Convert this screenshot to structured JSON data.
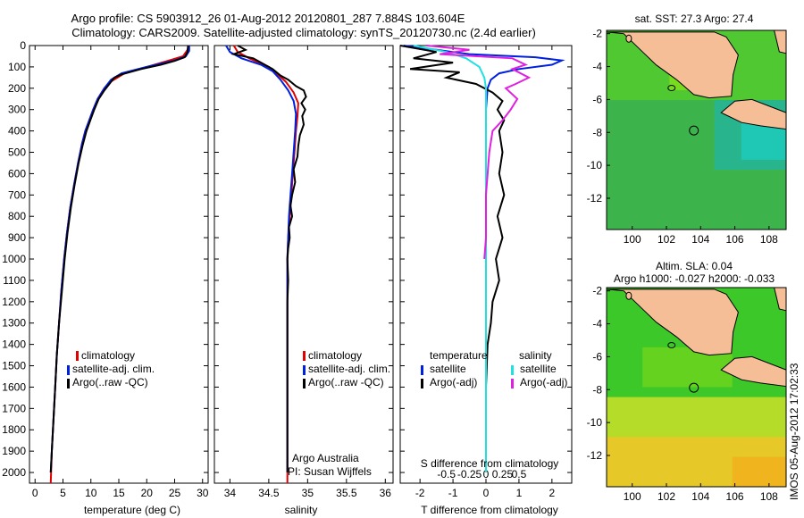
{
  "header": {
    "line1": "Argo profile: CS 5903912_26 01-Aug-2012 20120801_287 7.884S 103.604E",
    "line2": "Climatology: CARS2009. Satellite-adjusted climatology: synTS_20120730.nc (2.4d earlier)"
  },
  "colors": {
    "climatology": "#e00000",
    "satellite": "#0020e0",
    "argo": "#000000",
    "satellite_diff": "#20e0e0",
    "argo_diff": "#e020e0",
    "land": "#f5be96"
  },
  "chart_data": [
    {
      "type": "line",
      "id": "temperature",
      "xlabel": "temperature (deg C)",
      "ylabel": "",
      "xlim": [
        -1,
        31
      ],
      "ylim": [
        2050,
        0
      ],
      "xticks": [
        0,
        5,
        10,
        15,
        20,
        25,
        30
      ],
      "yticks": [
        0,
        100,
        200,
        300,
        400,
        500,
        600,
        700,
        800,
        900,
        1000,
        1100,
        1200,
        1300,
        1400,
        1500,
        1600,
        1700,
        1800,
        1900,
        2000
      ],
      "legend": [
        "climatology",
        "satellite-adj. clim.",
        "Argo(..raw -QC)"
      ],
      "series": [
        {
          "name": "climatology",
          "color": "#e00000",
          "points": [
            [
              27.5,
              0
            ],
            [
              27.3,
              20
            ],
            [
              26.5,
              50
            ],
            [
              24,
              70
            ],
            [
              20,
              100
            ],
            [
              16,
              130
            ],
            [
              13.5,
              170
            ],
            [
              12.4,
              200
            ],
            [
              11.2,
              250
            ],
            [
              10.4,
              300
            ],
            [
              9.7,
              350
            ],
            [
              9,
              400
            ],
            [
              8.4,
              460
            ],
            [
              7.7,
              550
            ],
            [
              7,
              650
            ],
            [
              6.3,
              760
            ],
            [
              5.7,
              880
            ],
            [
              5.2,
              1000
            ],
            [
              4.7,
              1150
            ],
            [
              4.3,
              1300
            ],
            [
              3.9,
              1450
            ],
            [
              3.6,
              1600
            ],
            [
              3.3,
              1750
            ],
            [
              3,
              1900
            ],
            [
              2.8,
              2050
            ]
          ]
        },
        {
          "name": "satellite-adj. clim.",
          "color": "#0020e0",
          "points": [
            [
              27.6,
              0
            ],
            [
              27.6,
              25
            ],
            [
              27,
              50
            ],
            [
              25,
              70
            ],
            [
              20,
              100
            ],
            [
              15.5,
              130
            ],
            [
              13.6,
              160
            ],
            [
              12.4,
              200
            ],
            [
              11.2,
              250
            ],
            [
              10.4,
              300
            ],
            [
              9.7,
              350
            ],
            [
              9,
              400
            ],
            [
              8.4,
              460
            ],
            [
              7.7,
              550
            ],
            [
              7,
              650
            ],
            [
              6.3,
              760
            ],
            [
              5.7,
              880
            ],
            [
              5.2,
              1000
            ],
            [
              4.7,
              1150
            ],
            [
              4.3,
              1300
            ],
            [
              3.9,
              1450
            ],
            [
              3.6,
              1600
            ],
            [
              3.3,
              1750
            ],
            [
              3,
              1900
            ],
            [
              2.8,
              2000
            ]
          ]
        },
        {
          "name": "Argo(..raw -QC)",
          "color": "#000000",
          "points": [
            [
              27.4,
              0
            ],
            [
              27.3,
              30
            ],
            [
              26.8,
              55
            ],
            [
              25,
              72
            ],
            [
              22.5,
              90
            ],
            [
              19,
              110
            ],
            [
              15.5,
              135
            ],
            [
              14.2,
              150
            ],
            [
              13.6,
              170
            ],
            [
              12.4,
              210
            ],
            [
              11.4,
              250
            ],
            [
              10.6,
              300
            ],
            [
              9.9,
              350
            ],
            [
              9.2,
              400
            ],
            [
              8.5,
              470
            ],
            [
              7.8,
              550
            ],
            [
              7.1,
              650
            ],
            [
              6.4,
              760
            ],
            [
              5.8,
              880
            ],
            [
              5.3,
              1000
            ],
            [
              4.8,
              1150
            ],
            [
              4.3,
              1300
            ],
            [
              3.9,
              1450
            ],
            [
              3.6,
              1600
            ],
            [
              3.3,
              1750
            ],
            [
              3,
              1900
            ],
            [
              2.8,
              2000
            ]
          ]
        }
      ]
    },
    {
      "type": "line",
      "id": "salinity",
      "xlabel": "salinity",
      "ylabel": "",
      "xlim": [
        33.8,
        36.1
      ],
      "ylim": [
        2050,
        0
      ],
      "xticks": [
        34,
        34.5,
        35,
        35.5,
        36
      ],
      "legend": [
        "climatology",
        "satellite-adj. clim.",
        "Argo(..raw -QC)"
      ],
      "annotation": [
        "Argo Australia",
        "PI: Susan Wijffels"
      ],
      "series": [
        {
          "name": "climatology",
          "color": "#e00000",
          "points": [
            [
              34.05,
              0
            ],
            [
              34.1,
              30
            ],
            [
              34.25,
              60
            ],
            [
              34.5,
              100
            ],
            [
              34.6,
              130
            ],
            [
              34.72,
              170
            ],
            [
              34.82,
              220
            ],
            [
              34.88,
              270
            ],
            [
              34.87,
              330
            ],
            [
              34.85,
              400
            ],
            [
              34.83,
              500
            ],
            [
              34.81,
              600
            ],
            [
              34.79,
              700
            ],
            [
              34.77,
              800
            ],
            [
              34.75,
              900
            ],
            [
              34.74,
              1000
            ],
            [
              34.74,
              1200
            ],
            [
              34.74,
              1400
            ],
            [
              34.74,
              1600
            ],
            [
              34.74,
              1800
            ],
            [
              34.74,
              2050
            ]
          ]
        },
        {
          "name": "satellite-adj. clim.",
          "color": "#0020e0",
          "points": [
            [
              33.95,
              0
            ],
            [
              34.0,
              30
            ],
            [
              34.15,
              60
            ],
            [
              34.4,
              90
            ],
            [
              34.55,
              120
            ],
            [
              34.65,
              160
            ],
            [
              34.75,
              210
            ],
            [
              34.82,
              260
            ],
            [
              34.85,
              320
            ],
            [
              34.84,
              400
            ],
            [
              34.82,
              500
            ],
            [
              34.8,
              600
            ],
            [
              34.78,
              700
            ],
            [
              34.76,
              800
            ],
            [
              34.75,
              900
            ],
            [
              34.74,
              1000
            ],
            [
              34.74,
              1200
            ],
            [
              34.74,
              1400
            ],
            [
              34.74,
              1600
            ],
            [
              34.74,
              1800
            ],
            [
              34.74,
              2000
            ]
          ]
        },
        {
          "name": "Argo(..raw -QC)",
          "color": "#000000",
          "points": [
            [
              34.1,
              0
            ],
            [
              34.2,
              20
            ],
            [
              34.05,
              40
            ],
            [
              34.3,
              60
            ],
            [
              34.45,
              90
            ],
            [
              34.55,
              110
            ],
            [
              34.65,
              140
            ],
            [
              34.75,
              160
            ],
            [
              34.85,
              190
            ],
            [
              34.95,
              210
            ],
            [
              34.98,
              240
            ],
            [
              34.92,
              270
            ],
            [
              34.97,
              300
            ],
            [
              34.93,
              330
            ],
            [
              34.95,
              370
            ],
            [
              34.9,
              420
            ],
            [
              34.88,
              470
            ],
            [
              34.87,
              520
            ],
            [
              34.82,
              580
            ],
            [
              34.84,
              640
            ],
            [
              34.8,
              700
            ],
            [
              34.78,
              750
            ],
            [
              34.8,
              800
            ],
            [
              34.76,
              850
            ],
            [
              34.77,
              900
            ],
            [
              34.75,
              950
            ],
            [
              34.74,
              1000
            ],
            [
              34.75,
              1100
            ],
            [
              34.74,
              1200
            ],
            [
              34.74,
              1400
            ],
            [
              34.74,
              1600
            ],
            [
              34.74,
              1800
            ],
            [
              34.74,
              2000
            ]
          ]
        }
      ]
    },
    {
      "type": "line",
      "id": "difference",
      "xlabel": "T difference from climatology",
      "x2label": "S difference from climatology",
      "xlim": [
        -2.6,
        2.6
      ],
      "ylim": [
        2050,
        0
      ],
      "xticks": [
        -2,
        -1,
        0,
        1,
        2
      ],
      "x2ticks": [
        "-0.5",
        "-0.25",
        "0",
        "0.25",
        "0.5"
      ],
      "legend_groups": [
        {
          "heading": "temperature",
          "items": [
            "satellite",
            "Argo(-adj)"
          ]
        },
        {
          "heading": "salinity",
          "items": [
            "satellite",
            "Argo(-adj)"
          ]
        }
      ],
      "series": [
        {
          "name": "satellite",
          "color": "#0020e0",
          "points": [
            [
              -2.5,
              0
            ],
            [
              -1.5,
              20
            ],
            [
              -0.5,
              40
            ],
            [
              1.5,
              55
            ],
            [
              2.3,
              70
            ],
            [
              2,
              90
            ],
            [
              1,
              110
            ],
            [
              0.4,
              130
            ],
            [
              0.15,
              160
            ],
            [
              0.05,
              200
            ],
            [
              0,
              300
            ],
            [
              0,
              500
            ],
            [
              0,
              800
            ],
            [
              0,
              1200
            ],
            [
              0,
              1600
            ],
            [
              0,
              2000
            ]
          ]
        },
        {
          "name": "Argo(-adj)",
          "color": "#000000",
          "points": [
            [
              -2.6,
              0
            ],
            [
              -1.5,
              30
            ],
            [
              -2.2,
              60
            ],
            [
              -1.0,
              80
            ],
            [
              -2.3,
              110
            ],
            [
              -0.8,
              125
            ],
            [
              -1.2,
              150
            ],
            [
              -0.3,
              180
            ],
            [
              0.2,
              220
            ],
            [
              0.5,
              260
            ],
            [
              0.35,
              300
            ],
            [
              0.55,
              350
            ],
            [
              0.4,
              400
            ],
            [
              0.5,
              500
            ],
            [
              0.4,
              600
            ],
            [
              0.55,
              700
            ],
            [
              0.35,
              800
            ],
            [
              0.5,
              900
            ],
            [
              0.3,
              1000
            ],
            [
              0.4,
              1100
            ],
            [
              0.2,
              1200
            ],
            [
              0.15,
              1300
            ],
            [
              0.05,
              1400
            ],
            [
              0,
              1600
            ],
            [
              0,
              1800
            ],
            [
              0,
              2000
            ]
          ]
        },
        {
          "name": "satellite",
          "color": "#20e0e0",
          "points": [
            [
              -2.2,
              0
            ],
            [
              -1.2,
              30
            ],
            [
              -0.6,
              60
            ],
            [
              -0.2,
              100
            ],
            [
              -0.05,
              150
            ],
            [
              0,
              200
            ],
            [
              0,
              400
            ],
            [
              0,
              800
            ],
            [
              0,
              1200
            ],
            [
              0,
              2000
            ]
          ]
        },
        {
          "name": "Argo(-adj)",
          "color": "#e020e0",
          "points": [
            [
              -1.8,
              0
            ],
            [
              -0.5,
              20
            ],
            [
              -1.4,
              40
            ],
            [
              0.8,
              60
            ],
            [
              1.2,
              90
            ],
            [
              0.8,
              110
            ],
            [
              1.3,
              150
            ],
            [
              0.9,
              180
            ],
            [
              0.6,
              200
            ],
            [
              0.95,
              250
            ],
            [
              0.75,
              300
            ],
            [
              0.5,
              350
            ],
            [
              0.2,
              400
            ],
            [
              0.1,
              500
            ],
            [
              0,
              700
            ],
            [
              0,
              900
            ],
            [
              -0.05,
              1000
            ]
          ]
        }
      ]
    }
  ],
  "maps": [
    {
      "id": "sst-map",
      "title": "sat. SST: 27.3 Argo: 27.4",
      "xticks": [
        "100",
        "102",
        "104",
        "106",
        "108"
      ],
      "yticks": [
        "-2",
        "-4",
        "-6",
        "-8",
        "-10",
        "-12"
      ],
      "marker": {
        "lon": 103.604,
        "lat": -7.884
      }
    },
    {
      "id": "sla-map",
      "title_line1": "Altim. SLA: 0.04",
      "title_line2": "Argo h1000: -0.027 h2000: -0.033",
      "xticks": [
        "100",
        "102",
        "104",
        "106",
        "108"
      ],
      "yticks": [
        "-2",
        "-4",
        "-6",
        "-8",
        "-10",
        "-12"
      ],
      "marker": {
        "lon": 103.604,
        "lat": -7.884
      }
    }
  ],
  "footer_stamp": "IMOS 05-Aug-2012 17:02:33"
}
